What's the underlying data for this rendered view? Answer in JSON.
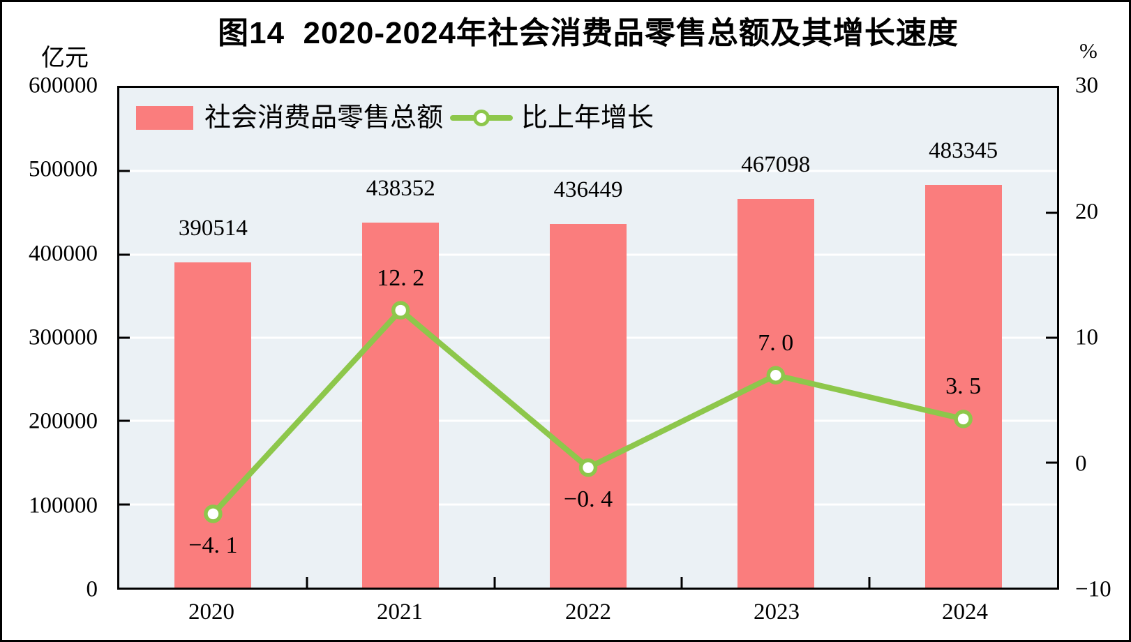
{
  "figure": {
    "title": "图14  2020-2024年社会消费品零售总额及其增长速度",
    "left_unit": "亿元",
    "right_unit": "%"
  },
  "legend": [
    {
      "label": "社会消费品零售总额",
      "marker": "bar-swatch"
    },
    {
      "label": "比上年增长",
      "marker": "line-with-circle"
    }
  ],
  "colors": {
    "bar": "#FA7D7D",
    "line": "#8DC74B",
    "marker_fill": "#FFFFFF",
    "plot_bg": "#EBF1F5",
    "gridline": "#FFFFFF",
    "axis": "#000000",
    "text": "#000000"
  },
  "chart_data": {
    "type": "bar+line",
    "title": "图14  2020-2024年社会消费品零售总额及其增长速度",
    "categories": [
      "2020",
      "2021",
      "2022",
      "2023",
      "2024"
    ],
    "series": [
      {
        "name": "社会消费品零售总额",
        "type": "bar",
        "axis": "left",
        "unit": "亿元",
        "values": [
          390514,
          438352,
          436449,
          467098,
          483345
        ],
        "labels": [
          "390514",
          "438352",
          "436449",
          "467098",
          "483345"
        ]
      },
      {
        "name": "比上年增长",
        "type": "line",
        "axis": "right",
        "unit": "%",
        "values": [
          -4.1,
          12.2,
          -0.4,
          7.0,
          3.5
        ],
        "labels": [
          "−4. 1",
          "12. 2",
          "−0. 4",
          "7. 0",
          "3. 5"
        ]
      }
    ],
    "left_axis": {
      "unit": "亿元",
      "min": 0,
      "max": 600000,
      "tick_step": 100000,
      "ticks": [
        {
          "value": 600000,
          "label": "600000"
        },
        {
          "value": 500000,
          "label": "500000"
        },
        {
          "value": 400000,
          "label": "400000"
        },
        {
          "value": 300000,
          "label": "300000"
        },
        {
          "value": 200000,
          "label": "200000"
        },
        {
          "value": 100000,
          "label": "100000"
        },
        {
          "value": 0,
          "label": "0"
        }
      ]
    },
    "right_axis": {
      "unit": "%",
      "min": -10,
      "max": 30,
      "tick_step": 10,
      "ticks": [
        {
          "value": 30,
          "label": "30"
        },
        {
          "value": 20,
          "label": "20"
        },
        {
          "value": 10,
          "label": "10"
        },
        {
          "value": 0,
          "label": "0"
        },
        {
          "value": -10,
          "label": "−10"
        }
      ]
    },
    "grid": {
      "horizontal": true,
      "vertical": false
    },
    "legend_position": "top-left-inside"
  }
}
